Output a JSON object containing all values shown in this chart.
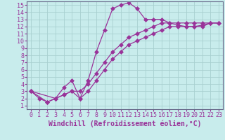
{
  "xlabel": "Windchill (Refroidissement éolien,°C)",
  "ylabel": "",
  "xlim": [
    -0.5,
    23.5
  ],
  "ylim": [
    0.5,
    15.5
  ],
  "xticks": [
    0,
    1,
    2,
    3,
    4,
    5,
    6,
    7,
    8,
    9,
    10,
    11,
    12,
    13,
    14,
    15,
    16,
    17,
    18,
    19,
    20,
    21,
    22,
    23
  ],
  "yticks": [
    1,
    2,
    3,
    4,
    5,
    6,
    7,
    8,
    9,
    10,
    11,
    12,
    13,
    14,
    15
  ],
  "background_color": "#c8ecec",
  "grid_color": "#a8d0d0",
  "line_color": "#993399",
  "curve1_x": [
    0,
    1,
    2,
    3,
    4,
    5,
    6,
    7,
    8,
    9,
    10,
    11,
    12,
    13,
    14,
    15,
    16,
    17,
    18,
    19,
    20,
    21,
    22,
    23
  ],
  "curve1_y": [
    3.0,
    2.0,
    1.5,
    2.0,
    3.5,
    4.5,
    2.0,
    4.5,
    8.5,
    11.5,
    14.5,
    15.0,
    15.3,
    14.5,
    13.0,
    13.0,
    13.0,
    12.5,
    12.2,
    12.0,
    12.0,
    12.2,
    12.5,
    12.5
  ],
  "curve2_x": [
    0,
    2,
    3,
    4,
    5,
    6,
    7,
    8,
    9,
    10,
    11,
    12,
    13,
    14,
    15,
    16,
    17,
    18,
    19,
    20,
    21,
    22,
    23
  ],
  "curve2_y": [
    3.0,
    1.5,
    2.0,
    2.5,
    3.0,
    2.0,
    3.0,
    4.5,
    6.0,
    7.5,
    8.5,
    9.5,
    10.0,
    10.5,
    11.0,
    11.5,
    12.0,
    12.0,
    12.0,
    12.0,
    12.0,
    12.5,
    12.5
  ],
  "curve3_x": [
    0,
    3,
    4,
    5,
    6,
    7,
    8,
    9,
    10,
    11,
    12,
    13,
    14,
    15,
    16,
    17,
    18,
    19,
    20,
    21,
    22,
    23
  ],
  "curve3_y": [
    3.0,
    2.0,
    2.5,
    3.0,
    3.0,
    4.0,
    5.5,
    7.0,
    8.5,
    9.5,
    10.5,
    11.0,
    11.5,
    12.0,
    12.5,
    12.5,
    12.5,
    12.5,
    12.5,
    12.5,
    12.5,
    12.5
  ],
  "font_color": "#993399",
  "tick_fontsize": 6,
  "label_fontsize": 7,
  "marker_size": 3
}
